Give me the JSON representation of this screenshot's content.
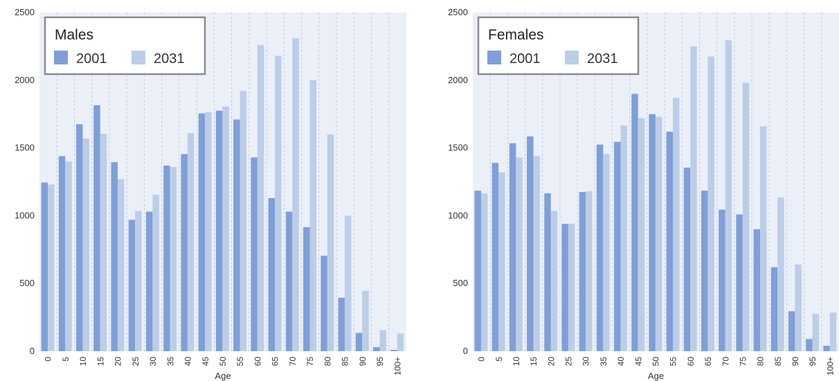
{
  "chart_data": [
    {
      "type": "bar",
      "title": "",
      "legend_title": "Males",
      "legend_placement": "top-left",
      "xlabel": "Age",
      "ylabel": "",
      "ylim": [
        0,
        2500
      ],
      "yticks": [
        "0",
        "500",
        "1000",
        "1500",
        "2000",
        "2500"
      ],
      "grid": true,
      "categories": [
        "0",
        "5",
        "10",
        "15",
        "20",
        "25",
        "30",
        "35",
        "40",
        "45",
        "50",
        "55",
        "60",
        "65",
        "70",
        "75",
        "80",
        "85",
        "90",
        "95",
        "100+"
      ],
      "series": [
        {
          "name": "2001",
          "color": "#7f9fd6",
          "values": [
            1245,
            1440,
            1675,
            1815,
            1395,
            970,
            1030,
            1370,
            1455,
            1755,
            1775,
            1710,
            1430,
            1130,
            1030,
            915,
            705,
            395,
            135,
            30,
            10
          ]
        },
        {
          "name": "2031",
          "color": "#bccde8",
          "values": [
            1230,
            1400,
            1570,
            1605,
            1270,
            1035,
            1155,
            1360,
            1610,
            1765,
            1805,
            1920,
            2260,
            2180,
            2310,
            2000,
            1600,
            1000,
            445,
            155,
            130
          ]
        }
      ]
    },
    {
      "type": "bar",
      "title": "",
      "legend_title": "Females",
      "legend_placement": "top-left",
      "xlabel": "Age",
      "ylabel": "",
      "ylim": [
        0,
        2500
      ],
      "yticks": [
        "0",
        "500",
        "1000",
        "1500",
        "2000",
        "2500"
      ],
      "grid": true,
      "categories": [
        "0",
        "5",
        "10",
        "15",
        "20",
        "25",
        "30",
        "35",
        "40",
        "45",
        "50",
        "55",
        "60",
        "65",
        "70",
        "75",
        "80",
        "85",
        "90",
        "95",
        "100+"
      ],
      "series": [
        {
          "name": "2001",
          "color": "#7f9fd6",
          "values": [
            1185,
            1390,
            1535,
            1585,
            1165,
            940,
            1175,
            1525,
            1545,
            1900,
            1750,
            1620,
            1355,
            1185,
            1045,
            1010,
            900,
            620,
            295,
            90,
            40
          ]
        },
        {
          "name": "2031",
          "color": "#bccde8",
          "values": [
            1165,
            1320,
            1430,
            1440,
            1035,
            940,
            1180,
            1455,
            1665,
            1720,
            1730,
            1870,
            2250,
            2175,
            2295,
            1980,
            1660,
            1135,
            640,
            275,
            285
          ]
        }
      ]
    }
  ]
}
